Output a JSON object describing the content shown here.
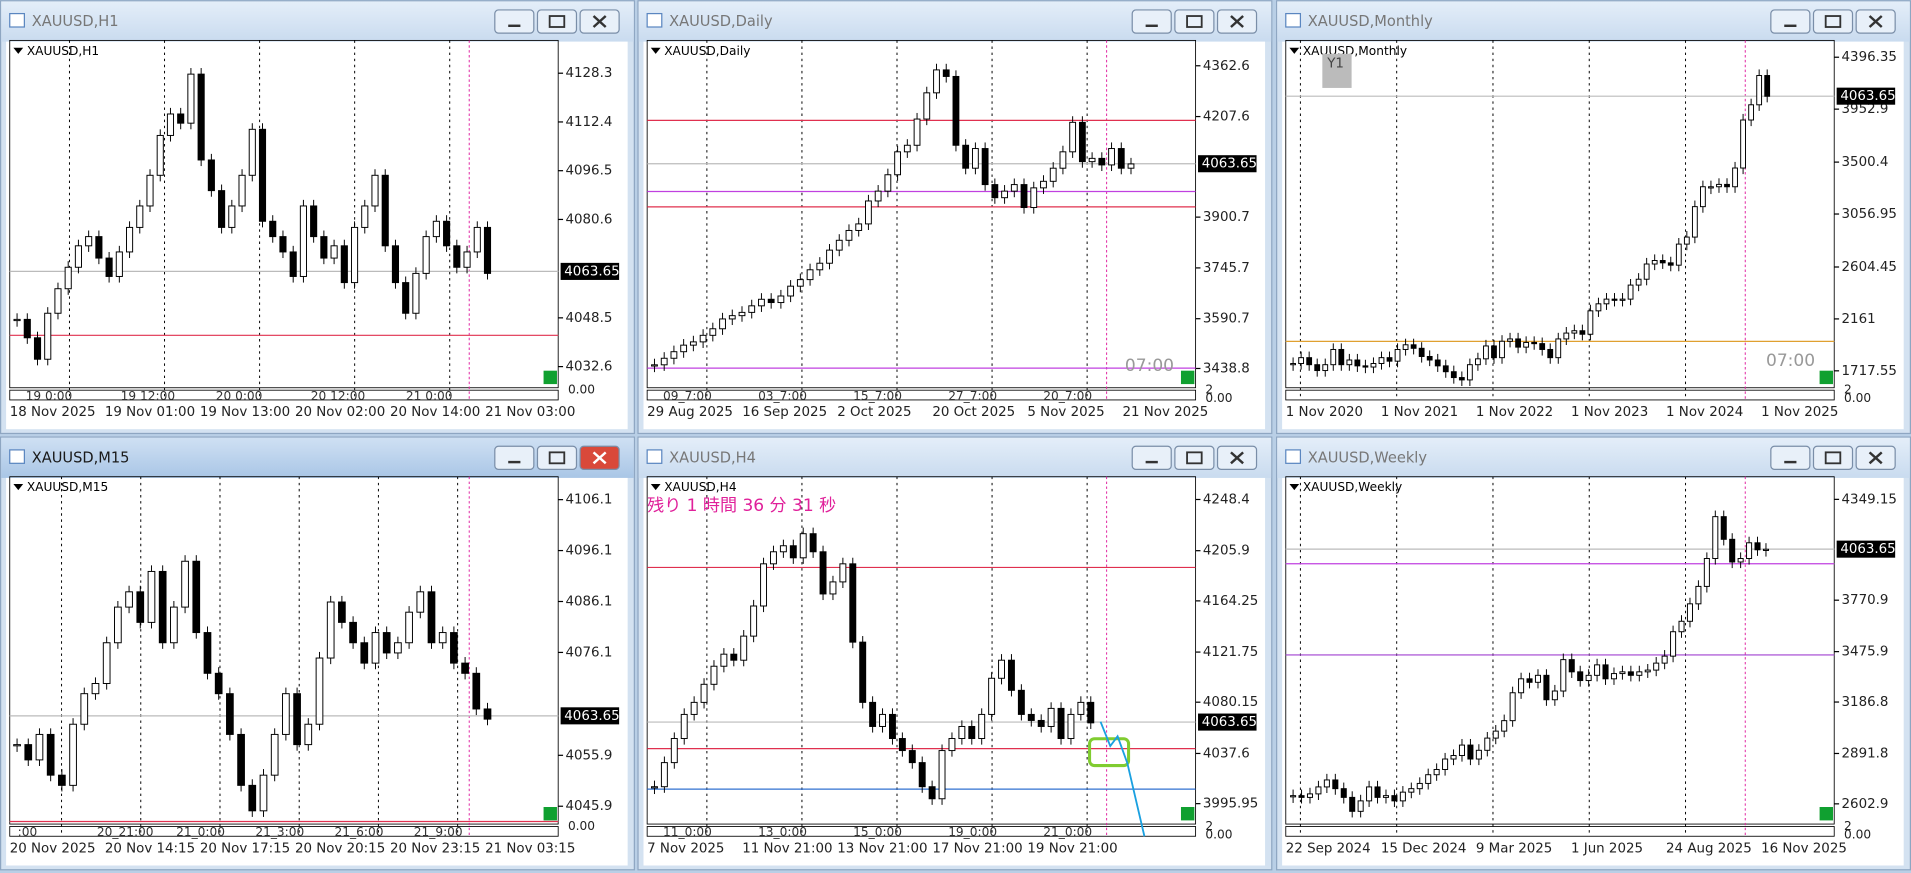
{
  "up_color": "#ffffff",
  "down_color": "#000000",
  "windows": [
    {
      "title": "XAUUSD,H1",
      "label": "XAUUSD,H1",
      "ylim": [
        4025.7,
        4139.0
      ],
      "yticks": [
        4128.3,
        4112.4,
        4096.5,
        4080.6,
        4048.5,
        4032.6
      ],
      "current": 4063.65,
      "closes": [
        4048,
        4042,
        4035,
        4050,
        4058,
        4065,
        4072,
        4075,
        4068,
        4062,
        4070,
        4078,
        4085,
        4095,
        4108,
        4115,
        4112,
        4128,
        4100,
        4090,
        4078,
        4085,
        4095,
        4110,
        4080,
        4075,
        4070,
        4062,
        4085,
        4075,
        4068,
        4072,
        4060,
        4078,
        4085,
        4095,
        4072,
        4060,
        4050,
        4063,
        4075,
        4080,
        4072,
        4065,
        4070,
        4078,
        4063
      ],
      "hlines": [
        {
          "value": 4042.8,
          "color": "#e0304f"
        }
      ],
      "period_labels": [
        "19 0:00",
        "19 12:00",
        "20 0:00",
        "20 12:00",
        "21 0:00"
      ],
      "time_labels": [
        "18 Nov 2025",
        "19 Nov 01:00",
        "19 Nov 13:00",
        "20 Nov 02:00",
        "20 Nov 14:00",
        "21 Nov 03:00"
      ],
      "sub_labels": [
        "0.00"
      ],
      "overlays": []
    },
    {
      "title": "XAUUSD,Daily",
      "label": "XAUUSD,Daily",
      "ylim": [
        3380,
        4440
      ],
      "yticks": [
        4362.6,
        4207.6,
        3900.7,
        3745.7,
        3590.7,
        3438.8
      ],
      "current": 4063.65,
      "closes": [
        3450,
        3470,
        3490,
        3510,
        3520,
        3540,
        3560,
        3590,
        3600,
        3610,
        3630,
        3650,
        3640,
        3660,
        3690,
        3710,
        3740,
        3760,
        3800,
        3830,
        3860,
        3880,
        3950,
        3980,
        4030,
        4100,
        4120,
        4200,
        4280,
        4350,
        4330,
        4120,
        4050,
        4110,
        4000,
        3960,
        3980,
        4000,
        3930,
        3990,
        4010,
        4050,
        4100,
        4190,
        4070,
        4080,
        4060,
        4110,
        4050,
        4063
      ],
      "hlines": [
        {
          "value": 4196,
          "color": "#e0304f"
        },
        {
          "value": 3979,
          "color": "#c040e0"
        },
        {
          "value": 3932,
          "color": "#e0304f"
        },
        {
          "value": 3440,
          "color": "#c040e0"
        }
      ],
      "period_labels": [
        "09_7:00",
        "03_7:00",
        "15_7:00",
        "27_7:00",
        "20_7:00"
      ],
      "time_labels": [
        "29 Aug 2025",
        "16 Sep 2025",
        "2 Oct 2025",
        "20 Oct 2025",
        "5 Nov 2025",
        "21 Nov 2025"
      ],
      "sub_labels": [
        "2",
        "0.00"
      ],
      "overlays": [
        "07:00"
      ]
    },
    {
      "title": "XAUUSD,Monthly",
      "label": "XAUUSD,Monthly",
      "ylim": [
        1573,
        4540
      ],
      "yticks": [
        4396.35,
        3952.9,
        3500.4,
        3056.95,
        2604.45,
        2161.0,
        1717.55
      ],
      "current": 4063.65,
      "closes": [
        1780,
        1830,
        1770,
        1720,
        1770,
        1900,
        1770,
        1810,
        1760,
        1750,
        1780,
        1830,
        1800,
        1900,
        1940,
        1910,
        1840,
        1810,
        1760,
        1710,
        1660,
        1640,
        1770,
        1820,
        1930,
        1830,
        1970,
        1990,
        1920,
        1960,
        1950,
        1900,
        1830,
        1990,
        2040,
        2060,
        2030,
        2230,
        2290,
        2330,
        2320,
        2330,
        2450,
        2500,
        2630,
        2660,
        2640,
        2620,
        2800,
        2860,
        3120,
        3290,
        3290,
        3310,
        3290,
        3450,
        3860,
        3990,
        4240,
        4063
      ],
      "hlines": [
        {
          "value": 1969,
          "color": "#e0a030"
        }
      ],
      "period_labels": [],
      "time_labels": [
        "1 Nov 2020",
        "1 Nov 2021",
        "1 Nov 2022",
        "1 Nov 2023",
        "1 Nov 2024",
        "1 Nov 2025"
      ],
      "sub_labels": [
        "2",
        "0.00"
      ],
      "overlays": [
        "Y1",
        "07:00"
      ]
    },
    {
      "title": "XAUUSD,M15",
      "label": "XAUUSD,M15",
      "active": true,
      "ylim": [
        4042.4,
        4110.6
      ],
      "yticks": [
        4106.1,
        4096.1,
        4086.1,
        4076.1,
        4055.9,
        4045.9
      ],
      "current": 4063.65,
      "closes": [
        4058,
        4055,
        4060,
        4052,
        4050,
        4062,
        4068,
        4070,
        4078,
        4085,
        4088,
        4082,
        4092,
        4078,
        4085,
        4094,
        4080,
        4072,
        4068,
        4060,
        4050,
        4045,
        4052,
        4060,
        4068,
        4058,
        4062,
        4075,
        4086,
        4082,
        4078,
        4074,
        4080,
        4076,
        4078,
        4084,
        4088,
        4078,
        4080,
        4074,
        4072,
        4065,
        4063
      ],
      "hlines": [
        {
          "value": 4042.9,
          "color": "#e0304f"
        }
      ],
      "period_labels": [
        ":00",
        "20_21:00",
        "21_0:00",
        "21_3:00",
        "21_6:00",
        "21_9:00"
      ],
      "time_labels": [
        "20 Nov 2025",
        "20 Nov 14:15",
        "20 Nov 17:15",
        "20 Nov 20:15",
        "20 Nov 23:15",
        "21 Nov 03:15"
      ],
      "sub_labels": [
        "0.00"
      ],
      "overlays": []
    },
    {
      "title": "XAUUSD,H4",
      "label": "XAUUSD,H4",
      "ylim": [
        3979,
        4267.3
      ],
      "yticks": [
        4248.4,
        4205.9,
        4164.25,
        4121.75,
        4080.15,
        4037.6,
        3995.95
      ],
      "current": 4063.65,
      "closes": [
        4010,
        4030,
        4050,
        4070,
        4080,
        4095,
        4110,
        4120,
        4115,
        4135,
        4160,
        4195,
        4205,
        4210,
        4200,
        4220,
        4205,
        4170,
        4180,
        4195,
        4130,
        4080,
        4060,
        4070,
        4050,
        4040,
        4030,
        4010,
        4000,
        4040,
        4050,
        4060,
        4050,
        4070,
        4100,
        4115,
        4090,
        4070,
        4065,
        4060,
        4075,
        4050,
        4070,
        4080,
        4063
      ],
      "hlines": [
        {
          "value": 4192,
          "color": "#e0304f"
        },
        {
          "value": 4041.6,
          "color": "#e0304f"
        },
        {
          "value": 4008,
          "color": "#3070d0"
        }
      ],
      "period_labels": [
        "11_0:00",
        "13_0:00",
        "15_0:00",
        "19_0:00",
        "21_0:00"
      ],
      "time_labels": [
        "7 Nov 2025",
        "11 Nov 21:00",
        "13 Nov 21:00",
        "17 Nov 21:00",
        "19 Nov 21:00"
      ],
      "sub_labels": [
        "2",
        "0.00"
      ],
      "overlays": [
        "残り 1 時間 36 分 31 秒"
      ]
    },
    {
      "title": "XAUUSD,Weekly",
      "label": "XAUUSD,Weekly",
      "ylim": [
        2487,
        4479
      ],
      "yticks": [
        4349.15,
        3770.9,
        3475.9,
        3186.8,
        2891.8,
        2602.9
      ],
      "current": 4063.65,
      "closes": [
        2650,
        2640,
        2660,
        2700,
        2740,
        2690,
        2640,
        2560,
        2620,
        2700,
        2640,
        2650,
        2620,
        2670,
        2690,
        2720,
        2770,
        2800,
        2860,
        2880,
        2940,
        2860,
        2910,
        2980,
        3020,
        3080,
        3240,
        3320,
        3300,
        3340,
        3200,
        3250,
        3430,
        3360,
        3310,
        3340,
        3400,
        3320,
        3350,
        3360,
        3340,
        3360,
        3370,
        3410,
        3450,
        3590,
        3650,
        3750,
        3850,
        4010,
        4250,
        4120,
        3990,
        4010,
        4100,
        4060,
        4063
      ],
      "hlines": [
        {
          "value": 3980,
          "color": "#c040e0"
        },
        {
          "value": 3457,
          "color": "#a040d0"
        }
      ],
      "period_labels": [],
      "time_labels": [
        "22 Sep 2024",
        "15 Dec 2024",
        "9 Mar 2025",
        "1 Jun 2025",
        "24 Aug 2025",
        "16 Nov 2025"
      ],
      "sub_labels": [
        "2",
        "0.00"
      ],
      "overlays": []
    }
  ]
}
